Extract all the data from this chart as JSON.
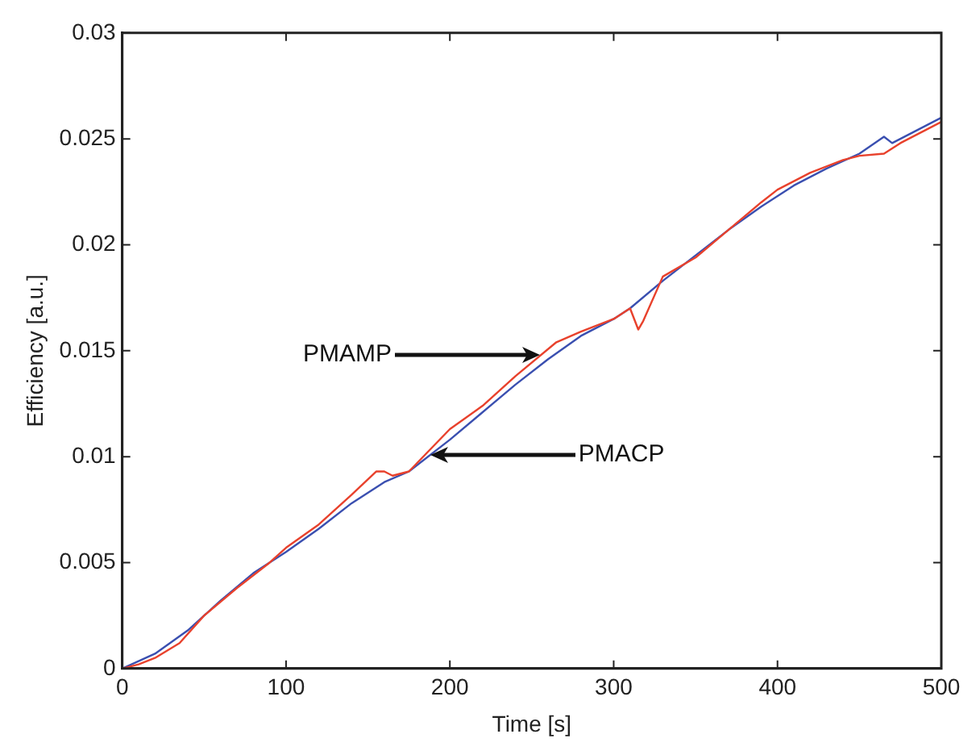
{
  "chart_data": {
    "type": "line",
    "xlabel": "Time [s]",
    "ylabel": "Efficiency [a.u.]",
    "xlim": [
      0,
      500
    ],
    "xticks": [
      0,
      100,
      200,
      300,
      400,
      500
    ],
    "ylim": [
      0,
      0.03
    ],
    "yticks": [
      0,
      0.005,
      0.01,
      0.015,
      0.02,
      0.025,
      0.03
    ],
    "grid": false,
    "legend": false,
    "marker": "none",
    "line_style": "solid",
    "series": [
      {
        "color": "#e8412c",
        "x": [
          0,
          10,
          20,
          35,
          50,
          70,
          90,
          100,
          120,
          140,
          155,
          160,
          165,
          175,
          185,
          200,
          220,
          240,
          265,
          280,
          300,
          310,
          315,
          318,
          330,
          350,
          370,
          390,
          400,
          420,
          440,
          450,
          465,
          475,
          490,
          500
        ],
        "values": [
          0,
          0.0002,
          0.0005,
          0.0012,
          0.0025,
          0.0038,
          0.005,
          0.0057,
          0.0068,
          0.0082,
          0.0093,
          0.0093,
          0.0091,
          0.0093,
          0.0101,
          0.0113,
          0.0124,
          0.0138,
          0.0154,
          0.0159,
          0.0165,
          0.017,
          0.016,
          0.0164,
          0.0185,
          0.0194,
          0.0207,
          0.022,
          0.0226,
          0.0234,
          0.024,
          0.0242,
          0.0243,
          0.0248,
          0.0254,
          0.0258
        ]
      },
      {
        "color": "#3a4fb0",
        "x": [
          0,
          20,
          40,
          60,
          80,
          100,
          120,
          140,
          160,
          175,
          200,
          220,
          240,
          260,
          280,
          300,
          310,
          330,
          350,
          370,
          390,
          410,
          430,
          450,
          465,
          470,
          480,
          500
        ],
        "values": [
          0,
          0.0007,
          0.0018,
          0.0032,
          0.0045,
          0.0055,
          0.0066,
          0.0078,
          0.0088,
          0.0093,
          0.0108,
          0.0121,
          0.0134,
          0.0146,
          0.0157,
          0.0165,
          0.017,
          0.0183,
          0.0195,
          0.0207,
          0.0218,
          0.0228,
          0.0236,
          0.0243,
          0.0251,
          0.0248,
          0.0252,
          0.026
        ]
      }
    ],
    "annotations": [
      {
        "text": "PMAMP",
        "x": 255,
        "y": 0.0148
      },
      {
        "text": "PMACP",
        "x": 188,
        "y": 0.0101
      }
    ]
  }
}
